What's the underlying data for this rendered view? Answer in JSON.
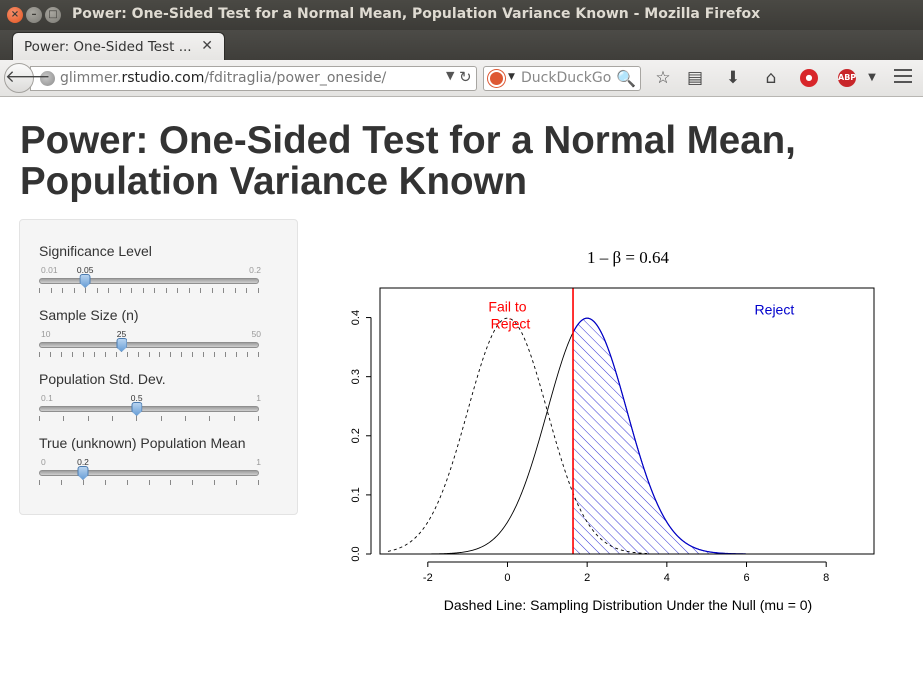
{
  "window": {
    "title": "Power: One-Sided Test for a Normal Mean, Population Variance Known - Mozilla Firefox"
  },
  "tabs": [
    {
      "label": "Power: One-Sided Test ...",
      "active": true
    }
  ],
  "toolbar": {
    "url_prefix": "glimmer.",
    "url_domain": "rstudio.com",
    "url_path": "/fditraglia/power_oneside/",
    "search_placeholder": "DuckDuckGo",
    "icons": [
      "back-icon",
      "globe-icon",
      "reload-icon",
      "duckduckgo-icon",
      "search-icon",
      "star-icon",
      "reading-list-icon",
      "download-icon",
      "home-icon",
      "ghostery-icon",
      "adblock-icon",
      "menu-icon"
    ]
  },
  "page": {
    "title": "Power: One-Sided Test for a Normal Mean, Population Variance Known"
  },
  "sliders": [
    {
      "label": "Significance Level",
      "min": "0.01",
      "max": "0.2",
      "value": "0.05",
      "fraction": 0.21,
      "ticks": 20
    },
    {
      "label": "Sample Size (n)",
      "min": "10",
      "max": "50",
      "value": "25",
      "fraction": 0.375,
      "ticks": 21
    },
    {
      "label": "Population Std. Dev.",
      "min": "0.1",
      "max": "1",
      "value": "0.5",
      "fraction": 0.444,
      "ticks": 10
    },
    {
      "label": "True (unknown) Population Mean",
      "min": "0",
      "max": "1",
      "value": "0.2",
      "fraction": 0.2,
      "ticks": 11
    }
  ],
  "chart_data": {
    "type": "line",
    "title": "1 – β = 0.64",
    "xlabel": "Dashed Line: Sampling Distribution Under the Null (mu = 0)",
    "ylabel": "",
    "xlim": [
      -3.2,
      9.2
    ],
    "ylim": [
      0,
      0.45
    ],
    "x_ticks": [
      -2,
      0,
      2,
      4,
      6,
      8
    ],
    "x_tick_labels": [
      "-2",
      "0",
      "2",
      "4",
      "6",
      "8"
    ],
    "y_ticks": [
      0.0,
      0.1,
      0.2,
      0.3,
      0.4
    ],
    "y_tick_labels": [
      "0.0",
      "0.1",
      "0.2",
      "0.3",
      "0.4"
    ],
    "critical_value": 1.645,
    "series": [
      {
        "style": "dashed",
        "mean": 0,
        "sd": 1,
        "x_range": [
          -3,
          3.5
        ]
      },
      {
        "style": "solid",
        "mean": 2,
        "sd": 1,
        "x_range": [
          -3,
          9
        ]
      }
    ],
    "shaded_region": {
      "from": 1.645,
      "to": 6,
      "series": 1,
      "pattern": "hatch",
      "color": "#0000cc"
    },
    "annotations": [
      {
        "text": "Fail to\nReject",
        "x": 0,
        "y": 0.41,
        "color": "#ff0000"
      },
      {
        "text": "Reject",
        "x": 6.7,
        "y": 0.405,
        "color": "#0000cc"
      }
    ],
    "colors": {
      "critical_line": "#ff0000",
      "reject_curve": "#0000cc",
      "axis": "#000000"
    }
  }
}
